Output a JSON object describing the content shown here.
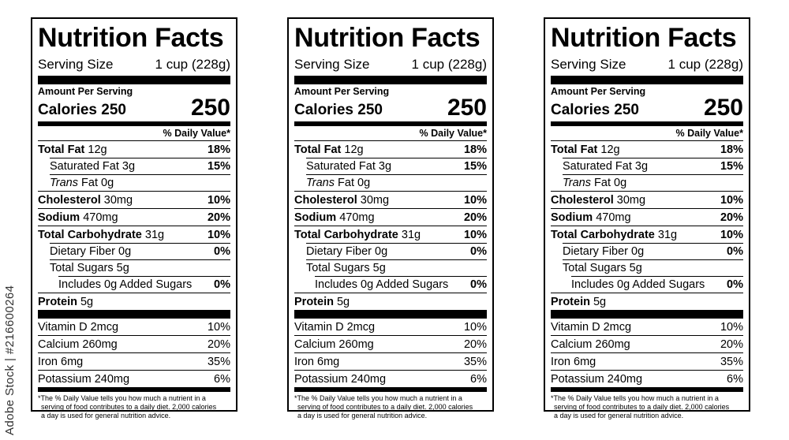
{
  "stock_id": "Adobe Stock | #216600264",
  "label": {
    "title": "Nutrition Facts",
    "serving_label": "Serving Size",
    "serving_value": "1 cup (228g)",
    "amount_per_serving": "Amount Per Serving",
    "calories_label": "Calories 250",
    "calories_value": "250",
    "dv_header": "% Daily Value*",
    "total_fat": {
      "name": "Total Fat",
      "amount": "12g",
      "pct": "18%"
    },
    "sat_fat": {
      "name": "Saturated Fat 3g",
      "pct": "15%"
    },
    "trans_fat": {
      "name": "Trans",
      "rest": "Fat 0g"
    },
    "cholesterol": {
      "name": "Cholesterol",
      "amount": "30mg",
      "pct": "10%"
    },
    "sodium": {
      "name": "Sodium",
      "amount": "470mg",
      "pct": "20%"
    },
    "carb": {
      "name": "Total Carbohydrate",
      "amount": "31g",
      "pct": "10%"
    },
    "fiber": {
      "name": "Dietary Fiber 0g",
      "pct": "0%"
    },
    "sugars": {
      "name": "Total Sugars 5g"
    },
    "added_sugars": {
      "name": "Includes 0g Added Sugars",
      "pct": "0%"
    },
    "protein": {
      "name": "Protein",
      "amount": "5g"
    },
    "vitamin_d": {
      "name": "Vitamin D 2mcg",
      "pct": "10%"
    },
    "calcium": {
      "name": "Calcium 260mg",
      "pct": "20%"
    },
    "iron": {
      "name": "Iron 6mg",
      "pct": "35%"
    },
    "potassium": {
      "name": "Potassium 240mg",
      "pct": "6%"
    },
    "footnote_1": "*The % Daily Value tells you how much a nutrient in a",
    "footnote_2": "serving of food contributes to a daily diet. 2,000 calories",
    "footnote_3": "a day is used for general nutrition advice."
  }
}
